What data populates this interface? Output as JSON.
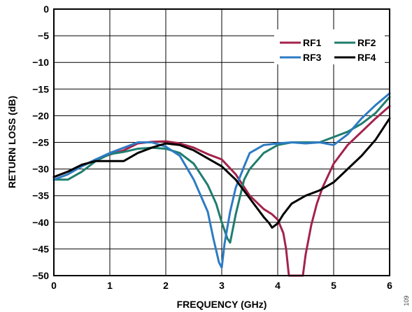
{
  "chart_data": {
    "type": "line",
    "title": "",
    "xlabel": "FREQUENCY (GHz)",
    "ylabel": "RETURN LOSS (dB)",
    "xlim": [
      0,
      6
    ],
    "ylim": [
      -50,
      0
    ],
    "xticks": [
      0,
      1,
      2,
      3,
      4,
      5,
      6
    ],
    "yticks": [
      0,
      -5,
      -10,
      -15,
      -20,
      -25,
      -30,
      -35,
      -40,
      -45,
      -50
    ],
    "grid": true,
    "legend_position": "top-right",
    "figure_id": "109",
    "series": [
      {
        "name": "RF1",
        "color": "#A3234B",
        "x": [
          0,
          0.25,
          0.5,
          0.75,
          1.0,
          1.25,
          1.5,
          1.75,
          2.0,
          2.25,
          2.5,
          2.75,
          3.0,
          3.25,
          3.5,
          3.75,
          3.9,
          4.0,
          4.1,
          4.15,
          4.2,
          4.45,
          4.5,
          4.6,
          4.7,
          4.8,
          5.0,
          5.25,
          5.5,
          5.75,
          6.0
        ],
        "y": [
          -31.5,
          -30.5,
          -29.5,
          -28.2,
          -27.3,
          -26.5,
          -25.2,
          -24.9,
          -24.8,
          -25.2,
          -26.0,
          -27.2,
          -28.2,
          -31.0,
          -35.0,
          -37.5,
          -38.5,
          -39.5,
          -42.0,
          -45.0,
          -50.0,
          -50.0,
          -46.0,
          -40.5,
          -36.5,
          -33.5,
          -29.0,
          -25.5,
          -23.0,
          -20.5,
          -18.2
        ]
      },
      {
        "name": "RF2",
        "color": "#1F7D6E",
        "x": [
          0,
          0.25,
          0.5,
          0.75,
          1.0,
          1.25,
          1.5,
          1.75,
          2.0,
          2.25,
          2.5,
          2.75,
          2.9,
          3.0,
          3.1,
          3.15,
          3.25,
          3.4,
          3.5,
          3.75,
          4.0,
          4.25,
          4.5,
          4.75,
          5.0,
          5.25,
          5.5,
          5.75,
          6.0
        ],
        "y": [
          -32.0,
          -32.0,
          -30.5,
          -28.5,
          -27.2,
          -26.8,
          -26.2,
          -26.0,
          -26.2,
          -27.0,
          -29.0,
          -33.0,
          -36.5,
          -40.0,
          -43.0,
          -43.8,
          -38.5,
          -32.0,
          -30.0,
          -27.0,
          -25.5,
          -25.0,
          -25.0,
          -25.0,
          -24.0,
          -23.0,
          -21.5,
          -19.5,
          -16.5
        ]
      },
      {
        "name": "RF3",
        "color": "#2D7BC4",
        "x": [
          0,
          0.25,
          0.5,
          0.75,
          1.0,
          1.25,
          1.5,
          1.75,
          2.0,
          2.25,
          2.5,
          2.75,
          2.85,
          2.95,
          3.0,
          3.05,
          3.15,
          3.25,
          3.4,
          3.5,
          3.75,
          4.0,
          4.25,
          4.5,
          4.75,
          5.0,
          5.25,
          5.5,
          5.75,
          6.0
        ],
        "y": [
          -32.0,
          -31.0,
          -29.5,
          -28.2,
          -27.0,
          -26.0,
          -25.0,
          -25.0,
          -25.8,
          -27.5,
          -32.0,
          -38.0,
          -43.0,
          -47.5,
          -48.5,
          -44.0,
          -38.0,
          -33.5,
          -29.5,
          -27.0,
          -25.5,
          -25.2,
          -25.0,
          -25.2,
          -25.0,
          -25.5,
          -23.5,
          -20.5,
          -18.0,
          -15.8
        ]
      },
      {
        "name": "RF4",
        "color": "#000000",
        "x": [
          0,
          0.25,
          0.5,
          0.75,
          1.0,
          1.25,
          1.5,
          1.75,
          2.0,
          2.25,
          2.5,
          2.75,
          3.0,
          3.25,
          3.5,
          3.75,
          3.85,
          3.9,
          4.0,
          4.1,
          4.25,
          4.5,
          4.75,
          5.0,
          5.25,
          5.5,
          5.75,
          6.0
        ],
        "y": [
          -31.5,
          -30.5,
          -29.2,
          -28.5,
          -28.5,
          -28.5,
          -27.0,
          -26.0,
          -25.2,
          -25.5,
          -26.5,
          -28.0,
          -29.5,
          -32.0,
          -35.5,
          -39.0,
          -40.2,
          -41.0,
          -40.2,
          -38.5,
          -36.5,
          -35.0,
          -34.0,
          -32.5,
          -30.0,
          -27.5,
          -24.5,
          -20.5
        ]
      }
    ]
  }
}
